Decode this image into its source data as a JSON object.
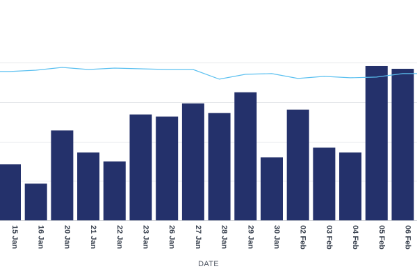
{
  "chart_data": {
    "type": "bar",
    "categories": [
      "15 Jan",
      "16 Jan",
      "20 Jan",
      "21 Jan",
      "22 Jan",
      "23 Jan",
      "26 Jan",
      "27 Jan",
      "28 Jan",
      "29 Jan",
      "30 Jan",
      "02 Feb",
      "03 Feb",
      "04 Feb",
      "05 Feb",
      "06 Feb"
    ],
    "series": [
      {
        "type": "bar",
        "values": [
          81,
          53,
          130,
          98,
          85,
          153,
          150,
          169,
          155,
          185,
          91,
          160,
          105,
          98,
          223,
          219
        ]
      },
      {
        "type": "line",
        "values": [
          215,
          217,
          221,
          218,
          220,
          219,
          218,
          218,
          204,
          211,
          212,
          205,
          208,
          206,
          207,
          212
        ]
      }
    ],
    "xlabel": "DATE",
    "ylabel": "",
    "ylim": [
      0,
      228
    ],
    "grid": true,
    "colors": {
      "bar": "#24316b",
      "line": "#5bc0f0",
      "grid": "#e6e8eb",
      "axis_text": "#3c4451"
    }
  }
}
